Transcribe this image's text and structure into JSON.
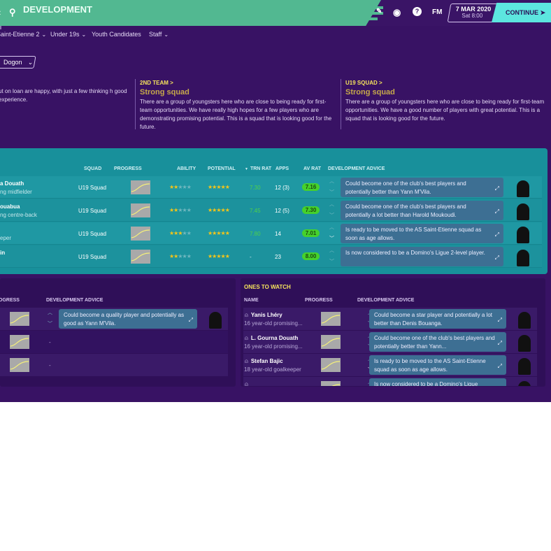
{
  "header": {
    "title": "DEVELOPMENT",
    "date": "7 MAR 2020",
    "time": "Sat 8:00",
    "continue_label": "CONTINUE",
    "fm_label": "FM",
    "icons": [
      "back-icon",
      "search-icon",
      "edit-icon",
      "globe-icon",
      "help-icon",
      "continue-arrow-icon"
    ]
  },
  "subnav": [
    {
      "label": "Saint-Etienne 2",
      "dropdown": true
    },
    {
      "label": "Under 19s",
      "dropdown": true
    },
    {
      "label": "Youth Candidates",
      "dropdown": false
    },
    {
      "label": "Staff",
      "dropdown": true
    }
  ],
  "filter": {
    "value": "Dogon"
  },
  "reports": [
    {
      "kicker": "",
      "heading": "",
      "text": "ut on loan are happy, with just a few thinking h good experience."
    },
    {
      "kicker": "2ND TEAM >",
      "heading": "Strong squad",
      "text": "There are a group of youngsters here who are close to being ready for first-team opportunities. We have really high hopes for a few players who are demonstrating promising potential. This is a squad that is looking good for the future."
    },
    {
      "kicker": "U19 SQUAD >",
      "heading": "Strong squad",
      "text": "There are a group of youngsters here who are close to being ready for first-team opportunities. We have a good number of players with great potential. This is a squad that is looking good for the future."
    }
  ],
  "main_table": {
    "columns": [
      "SQUAD",
      "PROGRESS",
      "ABILITY",
      "POTENTIAL",
      "TRN RAT",
      "APPS",
      "AV RAT",
      "DEVELOPMENT ADVICE"
    ],
    "sort_column": "TRN RAT",
    "rows": [
      {
        "name": "a Douath",
        "role": "ng midfielder",
        "squad": "U19 Squad",
        "ability": 2,
        "potential": 4.5,
        "trn_rat": "7.30",
        "apps": "12 (3)",
        "av_rat": "7.16",
        "advice": "Could become one of the club's best players and potentially better than Yann M'Vila."
      },
      {
        "name": "ouabua",
        "role": "ng centre-back",
        "squad": "U19 Squad",
        "ability": 2,
        "potential": 4.5,
        "trn_rat": "7.45",
        "apps": "12 (5)",
        "av_rat": "7.30",
        "advice": "Could become one of the club's best players and potentially a lot better than Harold Moukoudi."
      },
      {
        "name": "",
        "role": "eper",
        "squad": "U19 Squad",
        "ability": 2.5,
        "potential": 4.5,
        "trn_rat": "7.80",
        "apps": "14",
        "av_rat": "7.01",
        "advice": "Is ready to be moved to the AS Saint-Etienne squad as soon as age allows."
      },
      {
        "name": "in",
        "role": "",
        "squad": "U19 Squad",
        "ability": 2,
        "potential": 4.5,
        "trn_rat": "-",
        "apps": "23",
        "av_rat": "8.00",
        "advice": "Is now considered to be a Domino's Ligue 2-level player."
      }
    ]
  },
  "left_panel": {
    "columns": [
      "OGRESS",
      "DEVELOPMENT ADVICE"
    ],
    "rows": [
      {
        "advice": "Could become a quality player and potentially as good as Yann M'Vila."
      },
      {
        "advice": "-"
      },
      {
        "advice": "-"
      }
    ]
  },
  "ones_to_watch": {
    "title": "ONES TO WATCH",
    "columns": [
      "NAME",
      "PROGRESS",
      "DEVELOPMENT ADVICE"
    ],
    "rows": [
      {
        "name": "Yanis Lhéry",
        "sub": "16 year-old promising...",
        "advice": "Could become a star player and potentially a lot better than Denis Bouanga."
      },
      {
        "name": "L. Gourna Douath",
        "sub": "16 year-old promising...",
        "advice": "Could become one of the club's best players and potentially better than Yann..."
      },
      {
        "name": "Stefan Bajic",
        "sub": "18 year-old goalkeeper",
        "advice": "Is ready to be moved to the AS Saint-Etienne squad as soon as age allows."
      },
      {
        "name": "",
        "sub": "",
        "advice": "Is now considered to be a Domino's Ligue"
      }
    ]
  },
  "colors": {
    "header_green": "#52b891",
    "background": "#381264",
    "table_teal": "#18909b",
    "continue": "#5ce6df",
    "rating_badge": "#45d12c",
    "kicker": "#f5e35c"
  }
}
